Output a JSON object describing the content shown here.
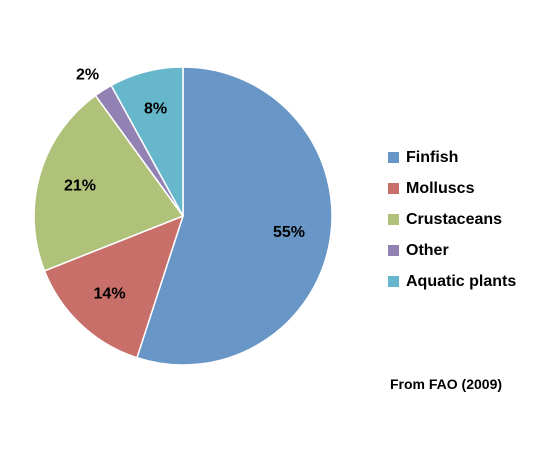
{
  "chart_data": {
    "type": "pie",
    "title": "",
    "start_angle_deg": 90,
    "direction": "clockwise",
    "slices": [
      {
        "label": "Finfish",
        "value": 55,
        "display": "55%",
        "color": "#6896C6"
      },
      {
        "label": "Molluscs",
        "value": 14,
        "display": "14%",
        "color": "#C86F6A"
      },
      {
        "label": "Crustaceans",
        "value": 21,
        "display": "21%",
        "color": "#B0C27A"
      },
      {
        "label": "Other",
        "value": 2,
        "display": "2%",
        "color": "#9282B4"
      },
      {
        "label": "Aquatic plants",
        "value": 8,
        "display": "8%",
        "color": "#66B7CB"
      }
    ],
    "legend_position": "right"
  },
  "source_note": "From FAO (2009)"
}
